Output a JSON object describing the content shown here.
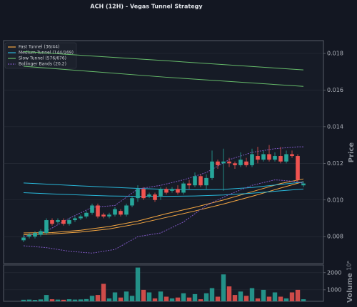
{
  "chart_data": [
    {
      "type": "candlestick",
      "title": "ACH (12H) - Vegas Tunnel Strategy",
      "ylabel": "Price",
      "up_color": "#26a69a",
      "down_color": "#ef5350",
      "grid": true,
      "legend": "upper left",
      "xlim": [
        -3.5,
        52.5
      ],
      "ylim": [
        0.00653,
        0.0187
      ],
      "yticks": [
        0.008,
        {
          "value": 0.01,
          "label": "0.010"
        },
        0.012,
        0.014,
        0.016,
        0.018
      ],
      "x": [
        0,
        1,
        2,
        3,
        4,
        5,
        6,
        7,
        8,
        9,
        10,
        11,
        12,
        13,
        14,
        15,
        16,
        17,
        18,
        19,
        20,
        21,
        22,
        23,
        24,
        25,
        26,
        27,
        28,
        29,
        30,
        31,
        32,
        33,
        34,
        35,
        36,
        37,
        38,
        39,
        40,
        41,
        42,
        43,
        44,
        45,
        46,
        47,
        48,
        49
      ],
      "open": [
        0.0078,
        0.008,
        0.008,
        0.0081,
        0.0082,
        0.0089,
        0.0088,
        0.0089,
        0.0087,
        0.0089,
        0.009,
        0.0091,
        0.0093,
        0.0097,
        0.0092,
        0.0091,
        0.0092,
        0.0094,
        0.0092,
        0.0097,
        0.0101,
        0.0106,
        0.0102,
        0.0103,
        0.0102,
        0.0106,
        0.0105,
        0.0106,
        0.0104,
        0.0109,
        0.0108,
        0.0113,
        0.0108,
        0.0112,
        0.0121,
        0.012,
        0.0121,
        0.012,
        0.0119,
        0.0121,
        0.0119,
        0.0124,
        0.0122,
        0.0125,
        0.0122,
        0.0124,
        0.0121,
        0.0125,
        0.0124,
        0.0108
      ],
      "high": [
        0.0081,
        0.0082,
        0.0083,
        0.0084,
        0.009,
        0.009,
        0.009,
        0.009,
        0.009,
        0.0091,
        0.0092,
        0.0094,
        0.0098,
        0.0098,
        0.0093,
        0.0093,
        0.0096,
        0.0095,
        0.0098,
        0.0102,
        0.0108,
        0.0107,
        0.0104,
        0.0104,
        0.0107,
        0.0107,
        0.0107,
        0.0108,
        0.011,
        0.0111,
        0.0115,
        0.0114,
        0.0114,
        0.0127,
        0.0122,
        0.0128,
        0.0123,
        0.0121,
        0.0126,
        0.0123,
        0.0128,
        0.0129,
        0.0127,
        0.013,
        0.0126,
        0.0129,
        0.0127,
        0.0127,
        0.0125,
        0.011
      ],
      "low": [
        0.0077,
        0.0079,
        0.0079,
        0.008,
        0.0081,
        0.0086,
        0.0087,
        0.0086,
        0.0086,
        0.0088,
        0.0089,
        0.009,
        0.0092,
        0.009,
        0.009,
        0.009,
        0.0091,
        0.0091,
        0.0091,
        0.0096,
        0.0099,
        0.01,
        0.0101,
        0.0099,
        0.01,
        0.0103,
        0.0104,
        0.0103,
        0.0103,
        0.0106,
        0.0107,
        0.0107,
        0.0106,
        0.0111,
        0.0117,
        0.0105,
        0.0118,
        0.0117,
        0.0118,
        0.0118,
        0.0118,
        0.012,
        0.0121,
        0.0121,
        0.0121,
        0.012,
        0.012,
        0.0123,
        0.011,
        0.0107
      ],
      "close": [
        0.00795,
        0.0081,
        0.0082,
        0.0083,
        0.0089,
        0.0087,
        0.0089,
        0.0087,
        0.0089,
        0.009,
        0.0091,
        0.0093,
        0.0097,
        0.0091,
        0.0091,
        0.0092,
        0.0095,
        0.0092,
        0.0097,
        0.0101,
        0.0106,
        0.0101,
        0.0103,
        0.01,
        0.0106,
        0.0104,
        0.0106,
        0.0104,
        0.0109,
        0.0108,
        0.0113,
        0.0108,
        0.0112,
        0.0121,
        0.0119,
        0.0121,
        0.012,
        0.0119,
        0.0122,
        0.0119,
        0.0125,
        0.0122,
        0.0125,
        0.0122,
        0.0124,
        0.0121,
        0.0125,
        0.0124,
        0.0111,
        0.0109
      ],
      "overlays": [
        {
          "name": "Fast Tunnel (36/44)",
          "color": "#f5a742",
          "lines": [
            {
              "x": [
                0,
                5,
                10,
                15,
                20,
                25,
                30,
                35,
                40,
                45,
                49
              ],
              "values": [
                0.0082,
                0.00822,
                0.00835,
                0.00855,
                0.00885,
                0.00925,
                0.0096,
                0.01,
                0.01045,
                0.0109,
                0.01115
              ]
            },
            {
              "x": [
                0,
                5,
                10,
                15,
                20,
                25,
                30,
                35,
                40,
                45,
                49
              ],
              "values": [
                0.0081,
                0.00815,
                0.00825,
                0.00842,
                0.0087,
                0.00905,
                0.0094,
                0.00978,
                0.0102,
                0.01065,
                0.011
              ]
            }
          ]
        },
        {
          "name": "Medium Tunnel (144/169)",
          "color": "#29b6d8",
          "lines": [
            {
              "x": [
                0,
                5,
                10,
                15,
                20,
                25,
                30,
                35,
                40,
                45,
                49
              ],
              "values": [
                0.01093,
                0.01085,
                0.01077,
                0.0107,
                0.01063,
                0.01058,
                0.01056,
                0.01058,
                0.01068,
                0.01085,
                0.01098
              ]
            },
            {
              "x": [
                0,
                5,
                10,
                15,
                20,
                25,
                30,
                35,
                40,
                45,
                49
              ],
              "values": [
                0.0104,
                0.01033,
                0.01027,
                0.01022,
                0.0102,
                0.0102,
                0.01022,
                0.01027,
                0.01037,
                0.0105,
                0.0106
              ]
            }
          ]
        },
        {
          "name": "Slow Tunnel (576/676)",
          "color": "#66bb6a",
          "lines": [
            {
              "x": [
                0,
                25,
                49
              ],
              "values": [
                0.0181,
                0.0176,
                0.0171
              ]
            },
            {
              "x": [
                0,
                25,
                49
              ],
              "values": [
                0.0173,
                0.0167,
                0.0162
              ]
            }
          ]
        },
        {
          "name": "Bollinger Bands (20,2)",
          "color": "#7e57c2",
          "dashed": true,
          "lines": [
            {
              "x": [
                0,
                4,
                8,
                12,
                16,
                20,
                24,
                28,
                32,
                36,
                40,
                44,
                48,
                49
              ],
              "values": [
                0.008,
                0.0083,
                0.009,
                0.0096,
                0.0097,
                0.0106,
                0.0108,
                0.0111,
                0.0115,
                0.0122,
                0.0126,
                0.0128,
                0.0129,
                0.0129
              ]
            },
            {
              "x": [
                0,
                4,
                8,
                12,
                16,
                20,
                24,
                28,
                32,
                36,
                40,
                44,
                48,
                49
              ],
              "values": [
                0.0075,
                0.0074,
                0.0072,
                0.0071,
                0.0073,
                0.008,
                0.0082,
                0.0088,
                0.0097,
                0.0103,
                0.0108,
                0.0111,
                0.011,
                0.0109
              ]
            }
          ]
        }
      ]
    },
    {
      "type": "bar",
      "ylabel": "Volume",
      "offset_label": "10⁶",
      "xlim": [
        -3.5,
        52.5
      ],
      "ylim": [
        330,
        2450
      ],
      "yticks": [
        1000,
        2000
      ],
      "grid": true,
      "x": [
        0,
        1,
        2,
        3,
        4,
        5,
        6,
        7,
        8,
        9,
        10,
        11,
        12,
        13,
        14,
        15,
        16,
        17,
        18,
        19,
        20,
        21,
        22,
        23,
        24,
        25,
        26,
        27,
        28,
        29,
        30,
        31,
        32,
        33,
        34,
        35,
        36,
        37,
        38,
        39,
        40,
        41,
        42,
        43,
        44,
        45,
        46,
        47,
        48,
        49
      ],
      "values": [
        420,
        430,
        410,
        440,
        700,
        450,
        430,
        420,
        450,
        430,
        440,
        460,
        650,
        700,
        1350,
        500,
        850,
        550,
        900,
        650,
        2300,
        1000,
        850,
        500,
        900,
        600,
        500,
        550,
        800,
        550,
        750,
        450,
        800,
        1100,
        600,
        1900,
        1200,
        700,
        900,
        650,
        1100,
        500,
        1000,
        600,
        850,
        600,
        500,
        850,
        1000,
        450
      ]
    }
  ]
}
